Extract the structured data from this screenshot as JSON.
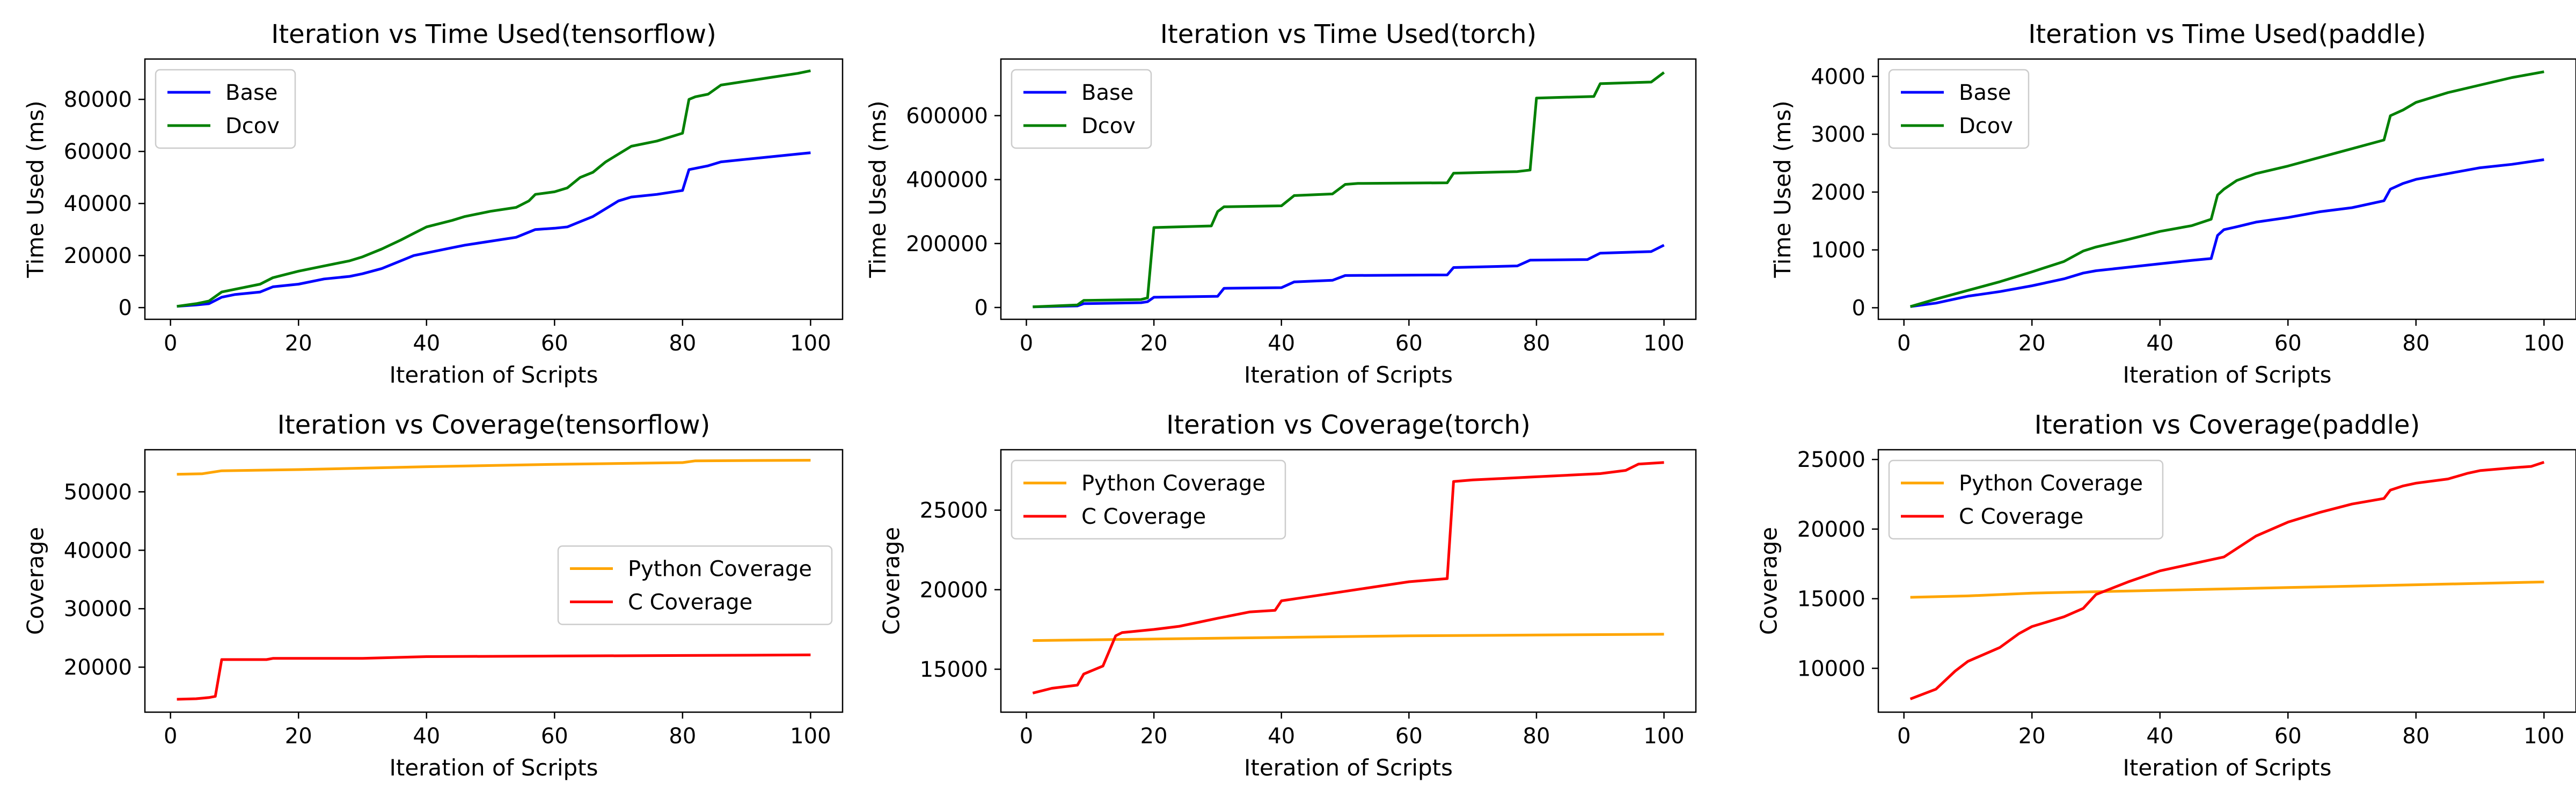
{
  "chart_data": [
    {
      "type": "line",
      "title": "Iteration vs Time Used(tensorflow)",
      "xlabel": "Iteration of Scripts",
      "ylabel": "Time Used (ms)",
      "xlim": [
        -4,
        105
      ],
      "ylim": [
        -4500,
        95500
      ],
      "xticks": [
        0,
        20,
        40,
        60,
        80,
        100
      ],
      "yticks": [
        0,
        20000,
        40000,
        60000,
        80000
      ],
      "legend": "upper left",
      "grid": false,
      "series": [
        {
          "name": "Base",
          "color": "#0000ff",
          "x": [
            1,
            4,
            6,
            8,
            10,
            14,
            16,
            20,
            24,
            28,
            30,
            33,
            36,
            38,
            40,
            44,
            46,
            50,
            54,
            56,
            57,
            60,
            62,
            64,
            66,
            68,
            70,
            72,
            76,
            80,
            81,
            82,
            84,
            86,
            90,
            94,
            98,
            100
          ],
          "y": [
            500,
            1000,
            1500,
            4000,
            5000,
            6000,
            8000,
            9000,
            11000,
            12000,
            13000,
            15000,
            18000,
            20000,
            21000,
            23000,
            24000,
            25500,
            27000,
            29000,
            30000,
            30500,
            31000,
            33000,
            35000,
            38000,
            41000,
            42500,
            43500,
            45000,
            53000,
            53500,
            54500,
            56000,
            57000,
            58000,
            59000,
            59500
          ]
        },
        {
          "name": "Dcov",
          "color": "#008000",
          "x": [
            1,
            4,
            6,
            8,
            10,
            14,
            16,
            20,
            24,
            28,
            30,
            33,
            36,
            38,
            40,
            44,
            46,
            50,
            54,
            56,
            57,
            60,
            62,
            64,
            66,
            68,
            70,
            72,
            76,
            80,
            81,
            82,
            84,
            86,
            90,
            94,
            98,
            100
          ],
          "y": [
            500,
            1500,
            2500,
            6000,
            7000,
            9000,
            11500,
            14000,
            16000,
            18000,
            19500,
            22500,
            26000,
            28500,
            31000,
            33500,
            35000,
            37000,
            38500,
            41000,
            43500,
            44500,
            46000,
            50000,
            52000,
            56000,
            59000,
            62000,
            64000,
            67000,
            80000,
            81000,
            82000,
            85500,
            87000,
            88500,
            90000,
            91000
          ]
        }
      ]
    },
    {
      "type": "line",
      "title": "Iteration vs Time Used(torch)",
      "xlabel": "Iteration of Scripts",
      "ylabel": "Time Used (ms)",
      "xlim": [
        -4,
        105
      ],
      "ylim": [
        -37000,
        777000
      ],
      "xticks": [
        0,
        20,
        40,
        60,
        80,
        100
      ],
      "yticks": [
        0,
        200000,
        400000,
        600000
      ],
      "legend": "upper left",
      "grid": false,
      "series": [
        {
          "name": "Base",
          "color": "#0000ff",
          "x": [
            1,
            8,
            9,
            18,
            19,
            20,
            30,
            31,
            40,
            42,
            48,
            50,
            66,
            67,
            77,
            79,
            88,
            90,
            98,
            100
          ],
          "y": [
            2000,
            5000,
            12000,
            15000,
            18000,
            32000,
            35000,
            60000,
            62000,
            80000,
            85000,
            100000,
            102000,
            125000,
            130000,
            148000,
            150000,
            170000,
            175000,
            195000
          ]
        },
        {
          "name": "Dcov",
          "color": "#008000",
          "x": [
            1,
            8,
            9,
            18,
            19,
            20,
            29,
            30,
            31,
            40,
            42,
            48,
            50,
            52,
            66,
            67,
            77,
            79,
            80,
            89,
            90,
            98,
            100
          ],
          "y": [
            2000,
            8000,
            22000,
            25000,
            30000,
            250000,
            255000,
            300000,
            315000,
            318000,
            350000,
            355000,
            385000,
            388000,
            390000,
            420000,
            425000,
            430000,
            655000,
            660000,
            700000,
            705000,
            735000
          ]
        }
      ]
    },
    {
      "type": "line",
      "title": "Iteration vs Time Used(paddle)",
      "xlabel": "Iteration of Scripts",
      "ylabel": "Time Used (ms)",
      "xlim": [
        -4,
        105
      ],
      "ylim": [
        -200,
        4300
      ],
      "xticks": [
        0,
        20,
        40,
        60,
        80,
        100
      ],
      "yticks": [
        0,
        1000,
        2000,
        3000,
        4000
      ],
      "legend": "upper left",
      "grid": false,
      "series": [
        {
          "name": "Base",
          "color": "#0000ff",
          "x": [
            1,
            5,
            10,
            15,
            20,
            25,
            28,
            30,
            35,
            40,
            45,
            48,
            49,
            50,
            52,
            55,
            60,
            65,
            70,
            75,
            76,
            78,
            80,
            85,
            90,
            95,
            100
          ],
          "y": [
            20,
            80,
            200,
            280,
            380,
            500,
            600,
            640,
            700,
            760,
            820,
            850,
            1250,
            1350,
            1400,
            1480,
            1560,
            1660,
            1730,
            1850,
            2050,
            2150,
            2220,
            2320,
            2420,
            2480,
            2560
          ]
        },
        {
          "name": "Dcov",
          "color": "#008000",
          "x": [
            1,
            5,
            10,
            15,
            20,
            25,
            28,
            30,
            35,
            40,
            45,
            48,
            49,
            50,
            52,
            55,
            60,
            65,
            70,
            75,
            76,
            78,
            80,
            85,
            90,
            95,
            100
          ],
          "y": [
            20,
            150,
            300,
            450,
            620,
            800,
            980,
            1050,
            1180,
            1320,
            1420,
            1530,
            1950,
            2050,
            2200,
            2320,
            2450,
            2600,
            2750,
            2900,
            3320,
            3420,
            3550,
            3720,
            3850,
            3980,
            4080
          ]
        }
      ]
    },
    {
      "type": "line",
      "title": "Iteration vs Coverage(tensorflow)",
      "xlabel": "Iteration of Scripts",
      "ylabel": "Coverage",
      "xlim": [
        -4,
        105
      ],
      "ylim": [
        12300,
        57200
      ],
      "xticks": [
        0,
        20,
        40,
        60,
        80,
        100
      ],
      "yticks": [
        20000,
        30000,
        40000,
        50000
      ],
      "legend": "center right",
      "grid": false,
      "series": [
        {
          "name": "Python Coverage",
          "color": "#ffa500",
          "x": [
            1,
            5,
            8,
            20,
            40,
            60,
            80,
            82,
            100
          ],
          "y": [
            53000,
            53100,
            53600,
            53800,
            54300,
            54700,
            55000,
            55300,
            55400
          ]
        },
        {
          "name": "C Coverage",
          "color": "#ff0000",
          "x": [
            1,
            4,
            6,
            7,
            8,
            15,
            16,
            30,
            40,
            60,
            80,
            100
          ],
          "y": [
            14500,
            14600,
            14800,
            15000,
            21300,
            21300,
            21500,
            21500,
            21800,
            21900,
            22000,
            22100
          ]
        }
      ]
    },
    {
      "type": "line",
      "title": "Iteration vs Coverage(torch)",
      "xlabel": "Iteration of Scripts",
      "ylabel": "Coverage",
      "xlim": [
        -4,
        105
      ],
      "ylim": [
        12300,
        28800
      ],
      "xticks": [
        0,
        20,
        40,
        60,
        80,
        100
      ],
      "yticks": [
        15000,
        20000,
        25000
      ],
      "legend": "upper left",
      "grid": false,
      "series": [
        {
          "name": "Python Coverage",
          "color": "#ffa500",
          "x": [
            1,
            20,
            40,
            60,
            80,
            100
          ],
          "y": [
            16800,
            16900,
            17000,
            17100,
            17150,
            17200
          ]
        },
        {
          "name": "C Coverage",
          "color": "#ff0000",
          "x": [
            1,
            4,
            8,
            9,
            12,
            14,
            15,
            20,
            24,
            30,
            35,
            39,
            40,
            45,
            50,
            55,
            60,
            66,
            67,
            70,
            80,
            90,
            94,
            96,
            100
          ],
          "y": [
            13500,
            13800,
            14000,
            14700,
            15200,
            17100,
            17300,
            17500,
            17700,
            18200,
            18600,
            18700,
            19300,
            19600,
            19900,
            20200,
            20500,
            20700,
            26800,
            26900,
            27100,
            27300,
            27500,
            27900,
            28000
          ]
        }
      ]
    },
    {
      "type": "line",
      "title": "Iteration vs Coverage(paddle)",
      "xlabel": "Iteration of Scripts",
      "ylabel": "Coverage",
      "xlim": [
        -4,
        105
      ],
      "ylim": [
        6850,
        25700
      ],
      "xticks": [
        0,
        20,
        40,
        60,
        80,
        100
      ],
      "yticks": [
        10000,
        15000,
        20000,
        25000
      ],
      "legend": "upper left",
      "grid": false,
      "series": [
        {
          "name": "Python Coverage",
          "color": "#ffa500",
          "x": [
            1,
            10,
            20,
            40,
            60,
            80,
            100
          ],
          "y": [
            15100,
            15200,
            15400,
            15600,
            15800,
            16000,
            16200
          ]
        },
        {
          "name": "C Coverage",
          "color": "#ff0000",
          "x": [
            1,
            5,
            8,
            10,
            15,
            18,
            20,
            25,
            28,
            30,
            35,
            40,
            45,
            50,
            55,
            60,
            65,
            70,
            75,
            76,
            78,
            80,
            85,
            88,
            90,
            95,
            98,
            100
          ],
          "y": [
            7800,
            8500,
            9800,
            10500,
            11500,
            12500,
            13000,
            13700,
            14300,
            15300,
            16200,
            17000,
            17500,
            18000,
            19500,
            20500,
            21200,
            21800,
            22200,
            22800,
            23100,
            23300,
            23600,
            24000,
            24200,
            24400,
            24500,
            24800
          ]
        }
      ]
    }
  ]
}
